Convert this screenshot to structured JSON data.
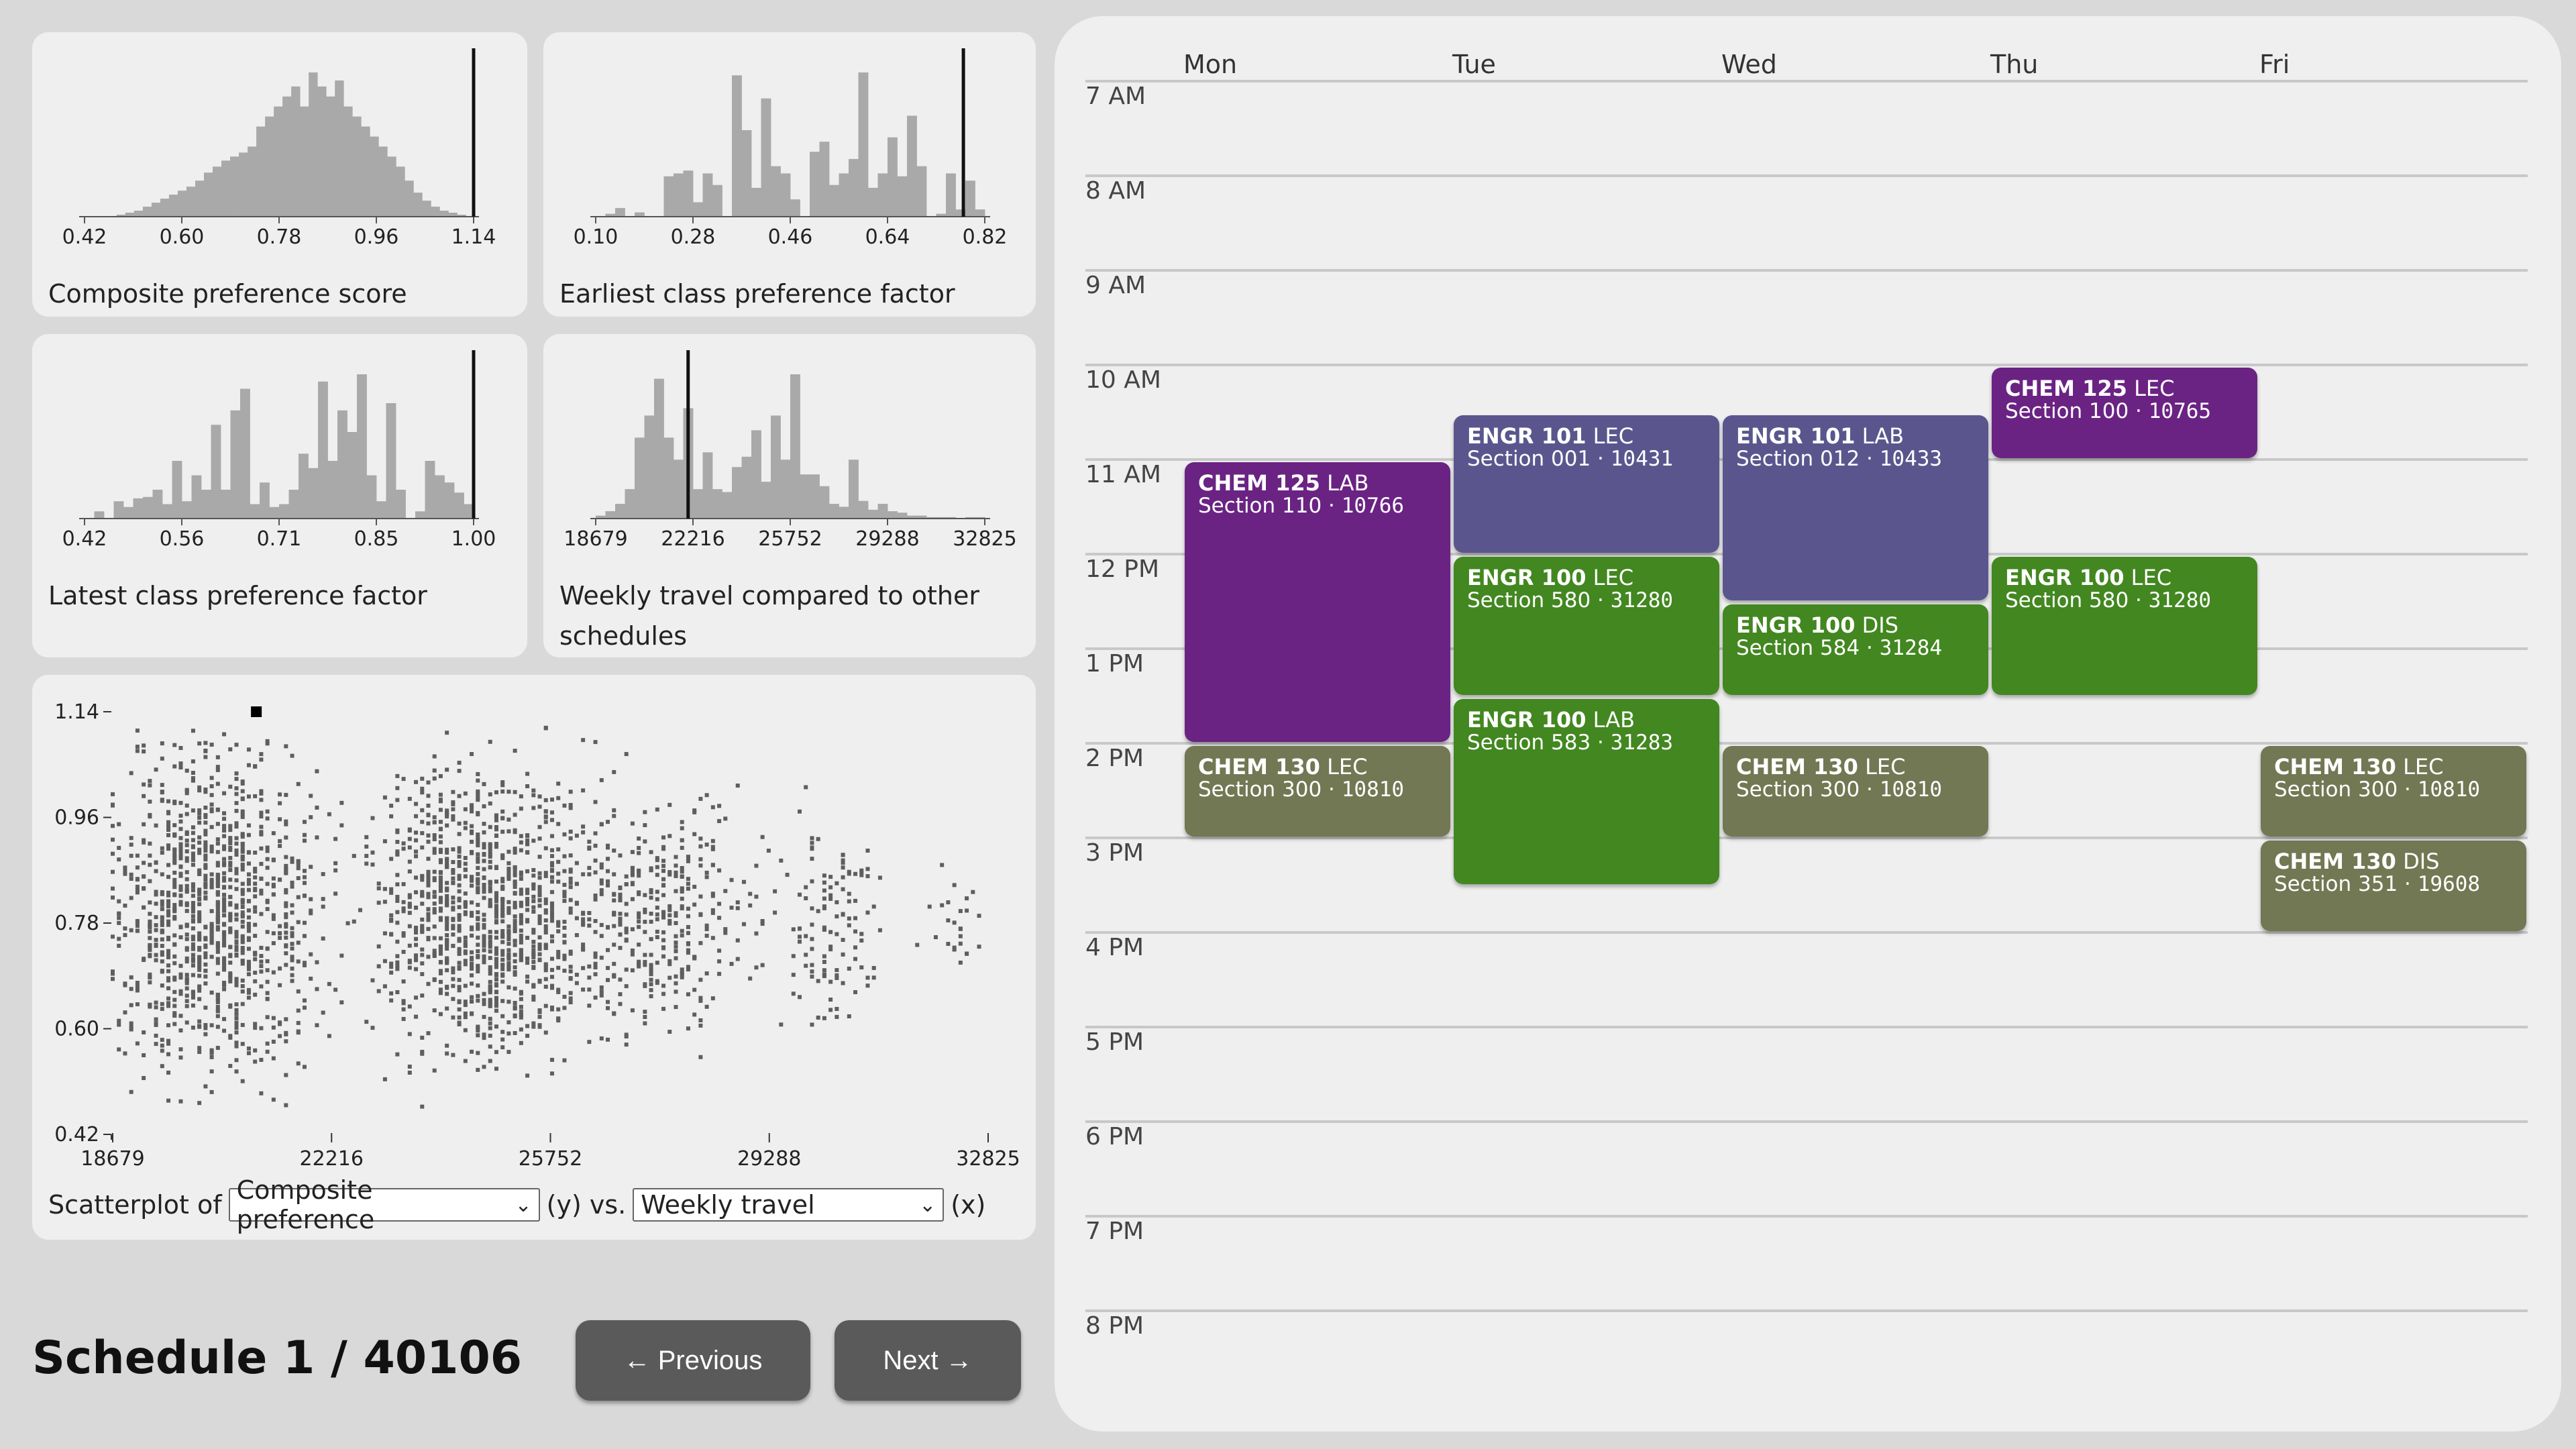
{
  "colors": {
    "chem125": "#6a2383",
    "engr101": "#5a568d",
    "engr100": "#428720",
    "chem130": "#717853",
    "hist_bar": "#a9a9a9",
    "scatter_point": "#5e5e5e"
  },
  "histograms": [
    {
      "title": "Composite preference score",
      "ticks": [
        "0.42",
        "0.60",
        "0.78",
        "0.96",
        "1.14"
      ],
      "marker_tick_index": 4.0,
      "bars": [
        1,
        2,
        3,
        5,
        7,
        9,
        11,
        13,
        15,
        18,
        22,
        25,
        28,
        30,
        32,
        35,
        45,
        50,
        55,
        60,
        65,
        55,
        72,
        65,
        60,
        68,
        55,
        50,
        45,
        40,
        35,
        30,
        25,
        18,
        12,
        8,
        5,
        3,
        2,
        1
      ],
      "bar_start": 0.33,
      "bar_end": 3.92
    },
    {
      "title": "Earliest class preference factor",
      "ticks": [
        "0.10",
        "0.28",
        "0.46",
        "0.64",
        "0.82"
      ],
      "marker_tick_index": 3.78,
      "bars": [
        0,
        2,
        6,
        0,
        3,
        0,
        0,
        28,
        30,
        32,
        10,
        30,
        22,
        0,
        98,
        60,
        20,
        82,
        35,
        30,
        12,
        0,
        45,
        52,
        22,
        30,
        40,
        100,
        20,
        30,
        55,
        28,
        70,
        35,
        0,
        2,
        30,
        5,
        25,
        5
      ],
      "bar_start": 0.0,
      "bar_end": 4.0
    },
    {
      "title": "Latest class preference factor",
      "ticks": [
        "0.42",
        "0.56",
        "0.71",
        "0.85",
        "1.00"
      ],
      "marker_tick_index": 4.0,
      "bars": [
        0,
        5,
        0,
        12,
        8,
        14,
        15,
        20,
        10,
        40,
        12,
        30,
        20,
        65,
        20,
        75,
        90,
        10,
        25,
        8,
        10,
        20,
        45,
        35,
        95,
        40,
        75,
        60,
        100,
        30,
        12,
        80,
        20,
        0,
        5,
        40,
        30,
        25,
        18,
        10
      ],
      "bar_start": 0.0,
      "bar_end": 4.0
    },
    {
      "title": "Weekly travel compared to other schedules",
      "ticks": [
        "18679",
        "22216",
        "25752",
        "29288",
        "32825"
      ],
      "marker_tick_index": 0.95,
      "bars": [
        2,
        5,
        10,
        20,
        55,
        70,
        95,
        55,
        40,
        75,
        20,
        45,
        20,
        18,
        35,
        42,
        60,
        25,
        70,
        40,
        98,
        30,
        30,
        22,
        10,
        8,
        40,
        12,
        6,
        10,
        5,
        4,
        2,
        2,
        1,
        1,
        1,
        0,
        1,
        1
      ],
      "bar_start": 0.0,
      "bar_end": 4.0
    }
  ],
  "scatter": {
    "y_ticks": [
      "1.14",
      "0.96",
      "0.78",
      "0.60",
      "0.42"
    ],
    "x_ticks": [
      "18679",
      "22216",
      "25752",
      "29288",
      "32825"
    ],
    "highlight": {
      "x": 21000,
      "y": 1.14
    }
  },
  "scatter_controls": {
    "prefix": "Scatterplot of",
    "y_select": "Composite preference",
    "y_suffix": "(y) vs.",
    "x_select": "Weekly travel",
    "x_suffix": "(x)"
  },
  "schedule_title": "Schedule 1 / 40106",
  "nav": {
    "previous": "← Previous",
    "next": "Next →"
  },
  "calendar": {
    "days": [
      "Mon",
      "Tue",
      "Wed",
      "Thu",
      "Fri"
    ],
    "hours": [
      "7 AM",
      "8 AM",
      "9 AM",
      "10 AM",
      "11 AM",
      "12 PM",
      "1 PM",
      "2 PM",
      "3 PM",
      "4 PM",
      "5 PM",
      "6 PM",
      "7 PM",
      "8 PM"
    ],
    "events": [
      {
        "course": "CHEM 125",
        "type": "LAB",
        "section": "Section 110",
        "crn": "10766",
        "day": 0,
        "start": 11.0,
        "end": 14.0,
        "color": "#6a2383"
      },
      {
        "course": "CHEM 130",
        "type": "LEC",
        "section": "Section 300",
        "crn": "10810",
        "day": 0,
        "start": 14.0,
        "end": 15.0,
        "color": "#717853"
      },
      {
        "course": "ENGR 101",
        "type": "LEC",
        "section": "Section 001",
        "crn": "10431",
        "day": 1,
        "start": 10.5,
        "end": 12.0,
        "color": "#5a568d"
      },
      {
        "course": "ENGR 100",
        "type": "LEC",
        "section": "Section 580",
        "crn": "31280",
        "day": 1,
        "start": 12.0,
        "end": 13.5,
        "color": "#428720"
      },
      {
        "course": "ENGR 100",
        "type": "LAB",
        "section": "Section 583",
        "crn": "31283",
        "day": 1,
        "start": 13.5,
        "end": 15.5,
        "color": "#428720"
      },
      {
        "course": "ENGR 101",
        "type": "LAB",
        "section": "Section 012",
        "crn": "10433",
        "day": 2,
        "start": 10.5,
        "end": 12.5,
        "color": "#5a568d"
      },
      {
        "course": "ENGR 100",
        "type": "DIS",
        "section": "Section 584",
        "crn": "31284",
        "day": 2,
        "start": 12.5,
        "end": 13.5,
        "color": "#428720"
      },
      {
        "course": "CHEM 130",
        "type": "LEC",
        "section": "Section 300",
        "crn": "10810",
        "day": 2,
        "start": 14.0,
        "end": 15.0,
        "color": "#717853"
      },
      {
        "course": "CHEM 125",
        "type": "LEC",
        "section": "Section 100",
        "crn": "10765",
        "day": 3,
        "start": 10.0,
        "end": 11.0,
        "color": "#6a2383"
      },
      {
        "course": "ENGR 100",
        "type": "LEC",
        "section": "Section 580",
        "crn": "31280",
        "day": 3,
        "start": 12.0,
        "end": 13.5,
        "color": "#428720"
      },
      {
        "course": "CHEM 130",
        "type": "LEC",
        "section": "Section 300",
        "crn": "10810",
        "day": 4,
        "start": 14.0,
        "end": 15.0,
        "color": "#717853"
      },
      {
        "course": "CHEM 130",
        "type": "DIS",
        "section": "Section 351",
        "crn": "19608",
        "day": 4,
        "start": 15.0,
        "end": 16.0,
        "color": "#717853"
      }
    ]
  }
}
